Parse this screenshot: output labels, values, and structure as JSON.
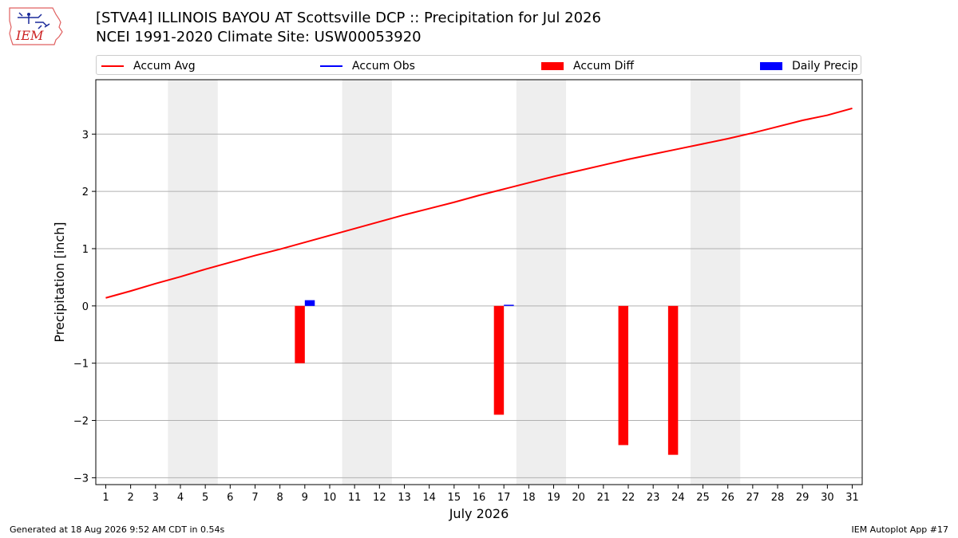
{
  "logo": {
    "text": "IEM"
  },
  "title": {
    "line1": "[STVA4] ILLINOIS BAYOU  AT Scottsville DCP :: Precipitation for Jul 2026",
    "line2": "NCEI 1991-2020 Climate Site: USW00053920"
  },
  "legend": {
    "accum_avg": "Accum Avg",
    "accum_obs": "Accum Obs",
    "accum_diff": "Accum Diff",
    "daily_precip": "Daily Precip"
  },
  "colors": {
    "accum_avg": "#ff0000",
    "accum_obs": "#0000ff",
    "accum_diff": "#ff0000",
    "daily_precip": "#0000ff",
    "weekend_shade": "#eeeeee",
    "grid": "#b0b0b0"
  },
  "footer": {
    "generated": "Generated at 18 Aug 2026 9:52 AM CDT in 0.54s",
    "app": "IEM Autoplot App #17"
  },
  "chart_data": {
    "type": "bar",
    "xlabel": "July 2026",
    "ylabel": "Precipitation [inch]",
    "x": [
      1,
      2,
      3,
      4,
      5,
      6,
      7,
      8,
      9,
      10,
      11,
      12,
      13,
      14,
      15,
      16,
      17,
      18,
      19,
      20,
      21,
      22,
      23,
      24,
      25,
      26,
      27,
      28,
      29,
      30,
      31
    ],
    "xlim": [
      0.6,
      31.4
    ],
    "ylim": [
      -3.12,
      3.95
    ],
    "yticks": [
      -3,
      -2,
      -1,
      0,
      1,
      2,
      3
    ],
    "ytick_labels": [
      "−3",
      "−2",
      "−1",
      "0",
      "1",
      "2",
      "3"
    ],
    "grid": "horizontal",
    "legend_position": "top",
    "weekend_spans": [
      [
        3.5,
        5.5
      ],
      [
        10.5,
        12.5
      ],
      [
        17.5,
        19.5
      ],
      [
        24.5,
        26.5
      ]
    ],
    "series": [
      {
        "name": "Accum Avg",
        "kind": "line",
        "values": [
          0.14,
          0.26,
          0.39,
          0.51,
          0.64,
          0.76,
          0.88,
          0.99,
          1.11,
          1.23,
          1.35,
          1.47,
          1.59,
          1.7,
          1.81,
          1.93,
          2.04,
          2.15,
          2.26,
          2.36,
          2.46,
          2.56,
          2.65,
          2.74,
          2.83,
          2.92,
          3.02,
          3.13,
          3.24,
          3.33,
          3.45
        ]
      },
      {
        "name": "Accum Diff",
        "kind": "bar",
        "points": [
          {
            "x": 9,
            "value": -1.0
          },
          {
            "x": 17,
            "value": -1.9
          },
          {
            "x": 22,
            "value": -2.43
          },
          {
            "x": 24,
            "value": -2.6
          }
        ]
      },
      {
        "name": "Daily Precip",
        "kind": "bar",
        "points": [
          {
            "x": 9,
            "value": 0.1
          },
          {
            "x": 17,
            "value": 0.02
          }
        ]
      }
    ]
  }
}
